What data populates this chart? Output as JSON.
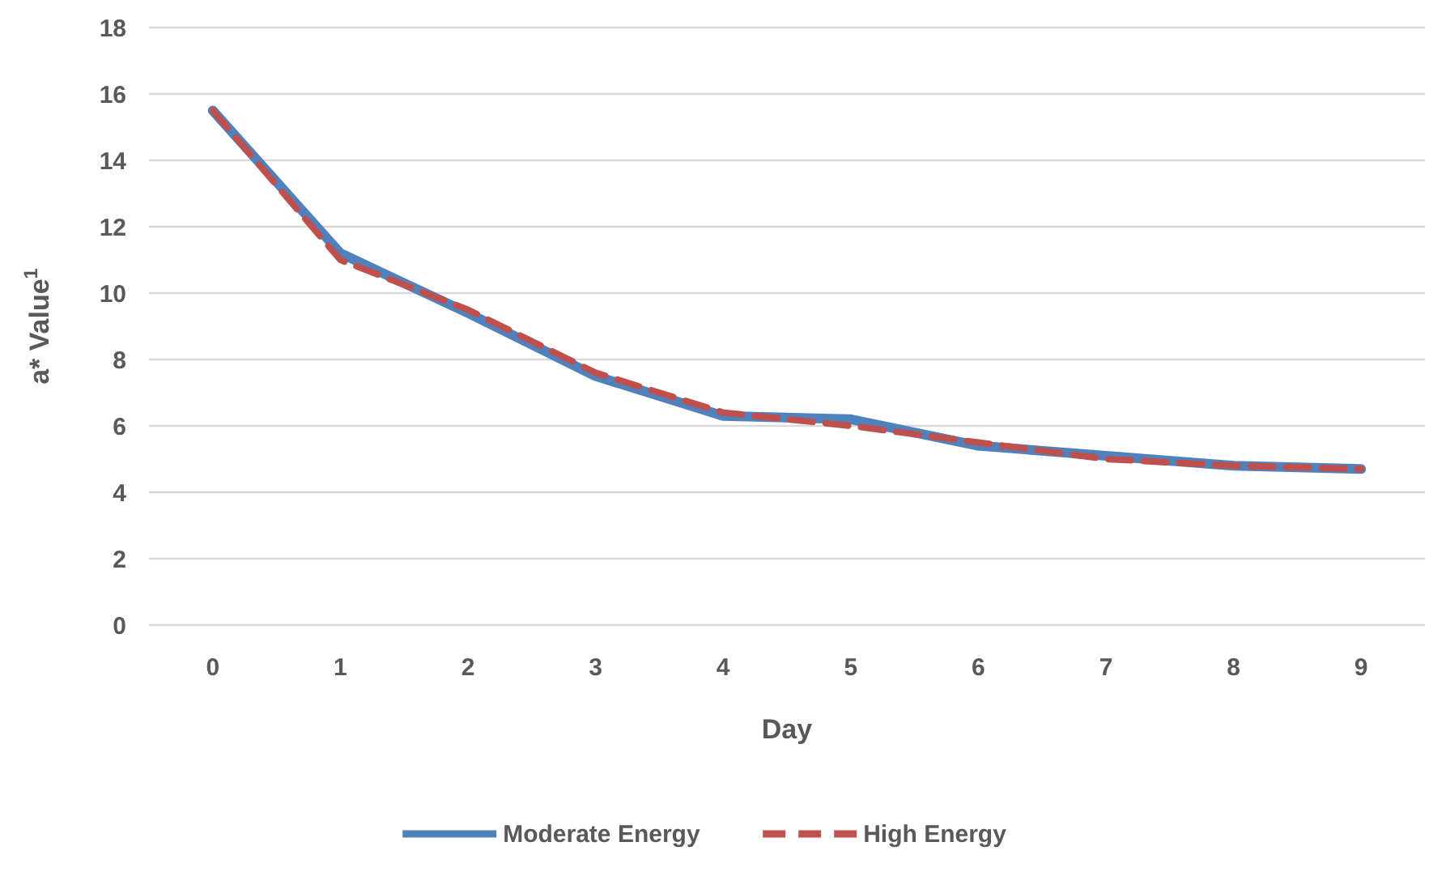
{
  "chart_data": {
    "type": "line",
    "xlabel": "Day",
    "ylabel": "a* Value$^{1}$",
    "categories": [
      "0",
      "1",
      "2",
      "3",
      "4",
      "5",
      "6",
      "7",
      "8",
      "9"
    ],
    "series": [
      {
        "name": "Moderate Energy",
        "color": "#4f81bd",
        "line_style": "solid",
        "values": [
          15.5,
          11.2,
          9.4,
          7.5,
          6.3,
          6.2,
          5.4,
          5.1,
          4.8,
          4.7
        ]
      },
      {
        "name": "High Energy",
        "color": "#c0504d",
        "line_style": "dashed",
        "values": [
          15.5,
          11.0,
          9.5,
          7.6,
          6.4,
          6.0,
          5.5,
          5.0,
          4.8,
          4.7
        ]
      }
    ],
    "ylim": [
      0,
      18
    ],
    "yticks": [
      0,
      2,
      4,
      6,
      8,
      10,
      12,
      14,
      16,
      18
    ],
    "grid": "y",
    "legend": "bottom",
    "marker": "none"
  }
}
